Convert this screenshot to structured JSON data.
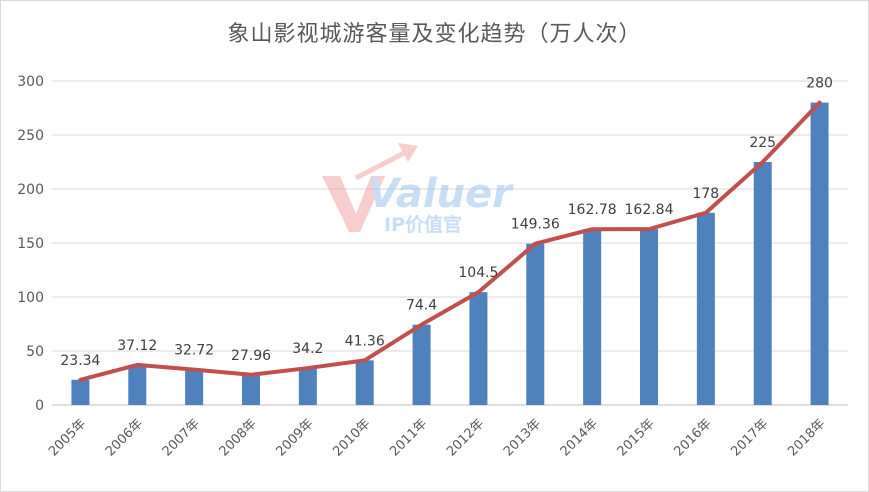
{
  "chart_data": {
    "type": "bar",
    "title": "象山影视城游客量及变化趋势（万人次）",
    "categories": [
      "2005年",
      "2006年",
      "2007年",
      "2008年",
      "2009年",
      "2010年",
      "2011年",
      "2012年",
      "2013年",
      "2014年",
      "2015年",
      "2016年",
      "2017年",
      "2018年"
    ],
    "series": [
      {
        "type": "bar",
        "values": [
          23.34,
          37.12,
          32.72,
          27.96,
          34.2,
          41.36,
          74.4,
          104.5,
          149.36,
          162.78,
          162.84,
          178,
          225,
          280
        ]
      },
      {
        "type": "line",
        "values": [
          23.34,
          37.12,
          32.72,
          27.96,
          34.2,
          41.36,
          74.4,
          104.5,
          149.36,
          162.78,
          162.84,
          178,
          225,
          280
        ]
      }
    ],
    "data_labels": [
      "23.34",
      "37.12",
      "32.72",
      "27.96",
      "34.2",
      "41.36",
      "74.4",
      "104.5",
      "149.36",
      "162.78",
      "162.84",
      "178",
      "225",
      "280"
    ],
    "ylim": [
      0,
      300
    ],
    "yticks": [
      "0",
      "50",
      "100",
      "150",
      "200",
      "250",
      "300"
    ],
    "grid": true,
    "colors": {
      "bar": "#4f81bd",
      "line": "#c0504d"
    }
  },
  "watermark": {
    "logo_text": "Valuer",
    "sub_text": "IP价值官"
  }
}
